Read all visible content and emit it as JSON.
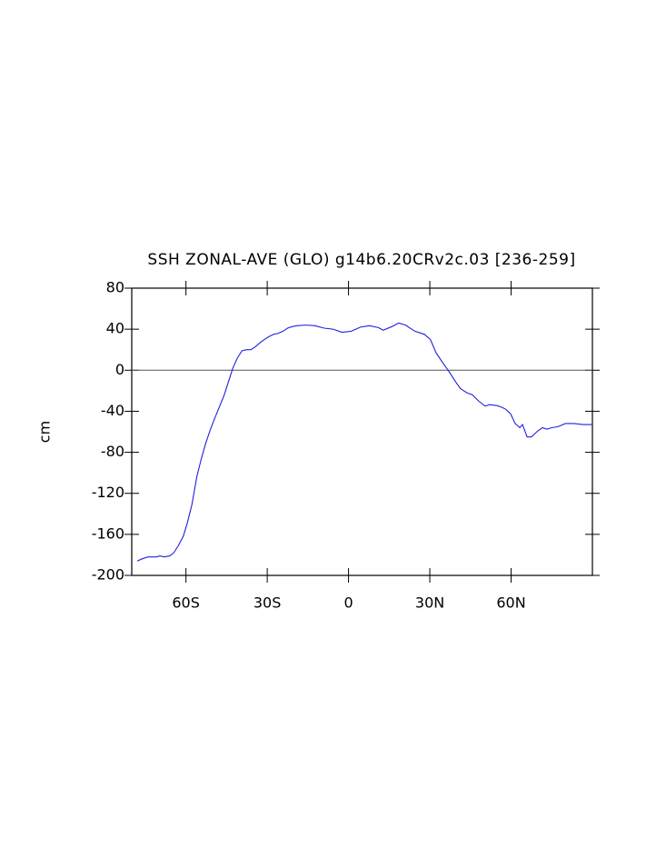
{
  "chart_data": {
    "type": "line",
    "title": "SSH ZONAL-AVE (GLO) g14b6.20CRv2c.03 [236-259]",
    "ylabel": "cm",
    "color": "#2020e0",
    "reference_value": 0,
    "xlim": [
      -80,
      90
    ],
    "ylim": [
      -200,
      80
    ],
    "xticks": [
      {
        "value": -60,
        "label": "60S"
      },
      {
        "value": -30,
        "label": "30S"
      },
      0,
      {
        "value": 30,
        "label": "30N"
      },
      {
        "value": 60,
        "label": "60N"
      }
    ],
    "yticks": [
      -200,
      -160,
      -120,
      -80,
      -40,
      0,
      40,
      80
    ],
    "x": [
      -78,
      -76.3,
      -74,
      -71,
      -69.6,
      -68,
      -66,
      -64.5,
      -62.8,
      -61,
      -59.5,
      -57.8,
      -56,
      -54.4,
      -52.8,
      -51,
      -49.4,
      -47.7,
      -46,
      -44.4,
      -42.7,
      -41,
      -39.3,
      -37.6,
      -36,
      -34.3,
      -32.6,
      -31,
      -29.2,
      -27.6,
      -25.9,
      -24.2,
      -22.5,
      -20.8,
      -19,
      -15.8,
      -12.4,
      -9,
      -5.7,
      -2.4,
      1,
      4.4,
      7.7,
      11,
      12.8,
      16,
      18.5,
      21,
      24.5,
      28,
      30.2,
      32.3,
      34.6,
      37,
      39.6,
      41.3,
      43.7,
      45.7,
      48,
      50.4,
      52,
      54.8,
      56.4,
      58,
      59.8,
      61.5,
      63.2,
      64.2,
      65.9,
      67.5,
      69.9,
      71.6,
      73.2,
      75,
      77.3,
      80,
      83.3,
      86.7,
      90
    ],
    "values": [
      -186,
      -184,
      -182,
      -182,
      -181,
      -182,
      -181,
      -178,
      -171,
      -162,
      -149,
      -131,
      -104,
      -87,
      -72,
      -58,
      -47,
      -36,
      -25,
      -12,
      2,
      12,
      19,
      20,
      20,
      23,
      27,
      30,
      33,
      35,
      36,
      38,
      41,
      42.5,
      43.4,
      44,
      43.4,
      41,
      40,
      37,
      38,
      42,
      43.4,
      41.6,
      39,
      42.5,
      46,
      44,
      38,
      35,
      30,
      17,
      8,
      -1,
      -11.5,
      -18,
      -22,
      -24,
      -30,
      -35,
      -33.6,
      -34.5,
      -36,
      -38,
      -42.5,
      -52,
      -56,
      -53,
      -65,
      -65,
      -59,
      -56,
      -57.5,
      -56,
      -55,
      -52,
      -52,
      -53,
      -53
    ]
  }
}
